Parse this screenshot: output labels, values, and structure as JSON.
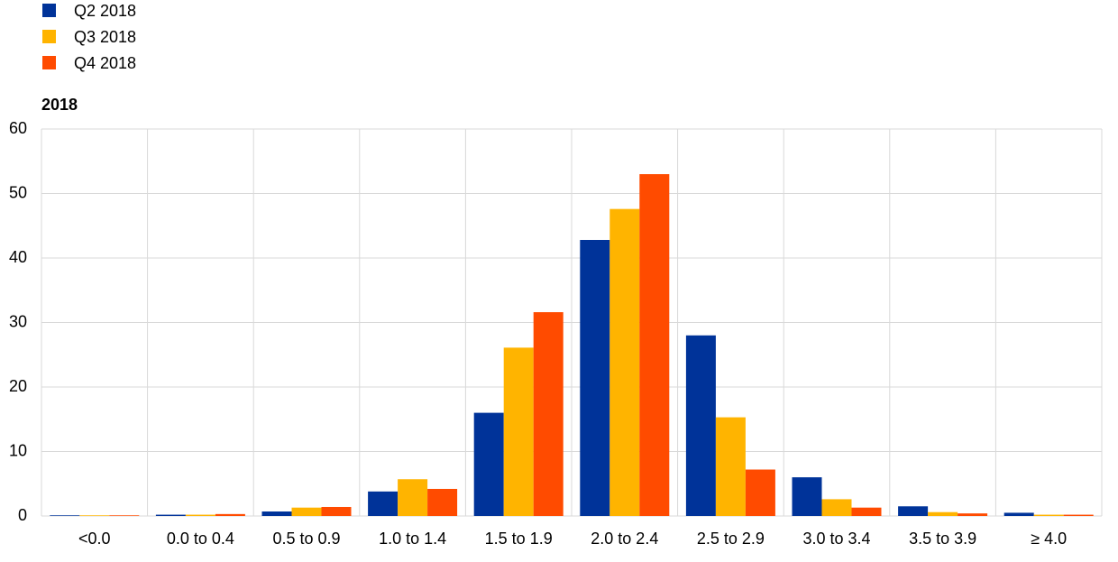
{
  "chart_data": {
    "type": "bar",
    "title": "2018",
    "categories": [
      "<0.0",
      "0.0 to 0.4",
      "0.5 to 0.9",
      "1.0 to 1.4",
      "1.5 to 1.9",
      "2.0 to 2.4",
      "2.5 to 2.9",
      "3.0 to 3.4",
      "3.5 to 3.9",
      "≥ 4.0"
    ],
    "series": [
      {
        "name": "Q2 2018",
        "color": "#003399",
        "values": [
          0.1,
          0.2,
          0.7,
          3.8,
          16.0,
          42.8,
          28.0,
          6.0,
          1.5,
          0.5
        ]
      },
      {
        "name": "Q3 2018",
        "color": "#ffb400",
        "values": [
          0.1,
          0.2,
          1.3,
          5.7,
          26.1,
          47.6,
          15.3,
          2.6,
          0.6,
          0.2
        ]
      },
      {
        "name": "Q4 2018",
        "color": "#ff4b00",
        "values": [
          0.1,
          0.3,
          1.4,
          4.2,
          31.6,
          53.0,
          7.2,
          1.3,
          0.4,
          0.2
        ]
      }
    ],
    "ylim": [
      0,
      60
    ],
    "yticks": [
      0,
      10,
      20,
      30,
      40,
      50,
      60
    ],
    "grid": true
  }
}
